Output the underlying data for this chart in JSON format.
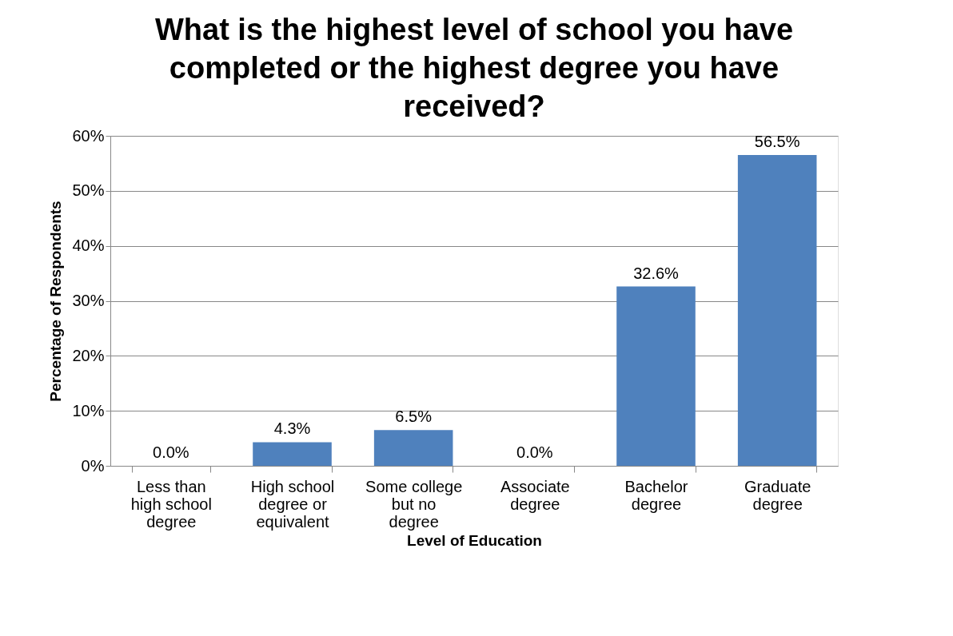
{
  "chart_data": {
    "type": "bar",
    "title": "What is the highest level of school you have\ncompleted or the highest degree you have\nreceived?",
    "xlabel": "Level of Education",
    "ylabel": "Percentage of Respondents",
    "categories": [
      "Less than\nhigh school\ndegree",
      "High school\ndegree or\nequivalent",
      "Some college\nbut no\ndegree",
      "Associate\ndegree",
      "Bachelor\ndegree",
      "Graduate\ndegree"
    ],
    "values": [
      0,
      4.3,
      6.5,
      0,
      32.6,
      56.5
    ],
    "value_labels": [
      "0.0%",
      "4.3%",
      "6.5%",
      "0.0%",
      "32.6%",
      "56.5%"
    ],
    "color": "#4f81bd",
    "ylim": [
      0,
      60
    ],
    "yticks": [
      {
        "value": 0,
        "label": "0%"
      },
      {
        "value": 10,
        "label": "10%"
      },
      {
        "value": 20,
        "label": "20%"
      },
      {
        "value": 30,
        "label": "30%"
      },
      {
        "value": 40,
        "label": "40%"
      },
      {
        "value": 50,
        "label": "50%"
      },
      {
        "value": 60,
        "label": "60%"
      }
    ],
    "grid": "y"
  }
}
